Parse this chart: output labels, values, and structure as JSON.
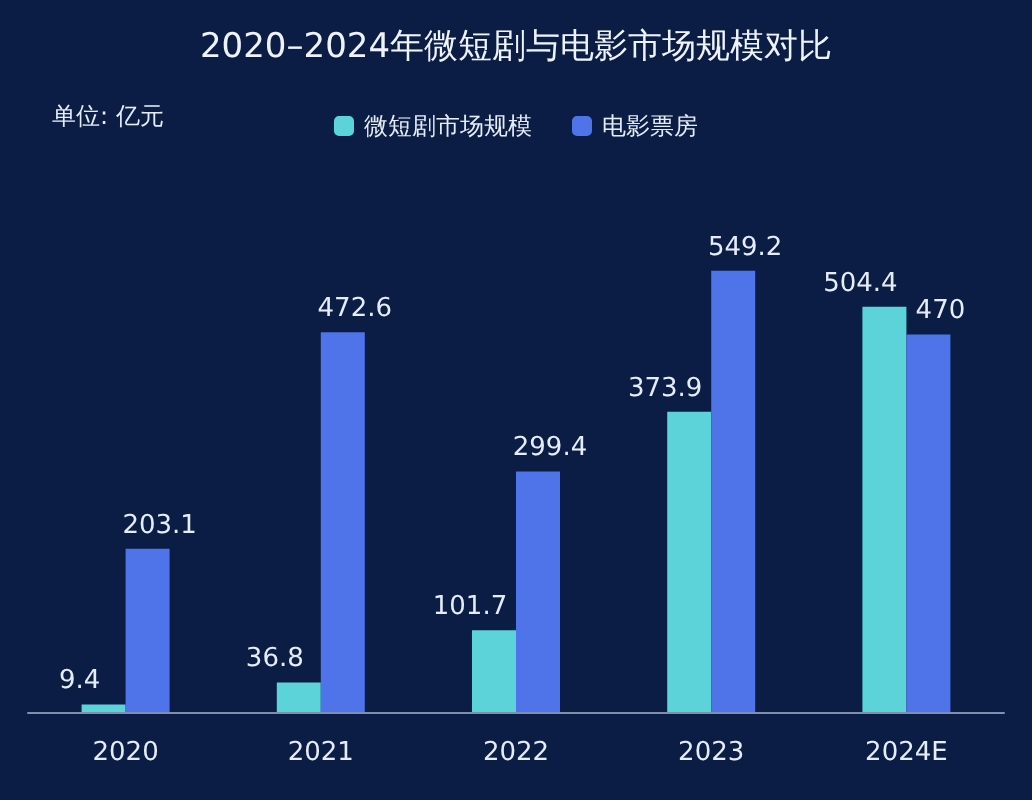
{
  "chart_data": {
    "type": "bar",
    "title": "2020–2024年微短剧与电影市场规模对比",
    "annotations": [
      "单位: 亿元"
    ],
    "categories": [
      "2020",
      "2021",
      "2022",
      "2023",
      "2024E"
    ],
    "series": [
      {
        "name": "微短剧市场规模",
        "color": "#5cd3d9",
        "values": [
          9.4,
          36.8,
          101.7,
          373.9,
          504.4
        ]
      },
      {
        "name": "电影票房",
        "color": "#4f74ea",
        "values": [
          203.1,
          472.6,
          299.4,
          549.2,
          470
        ]
      }
    ],
    "data_labels": true,
    "legend": "top"
  }
}
